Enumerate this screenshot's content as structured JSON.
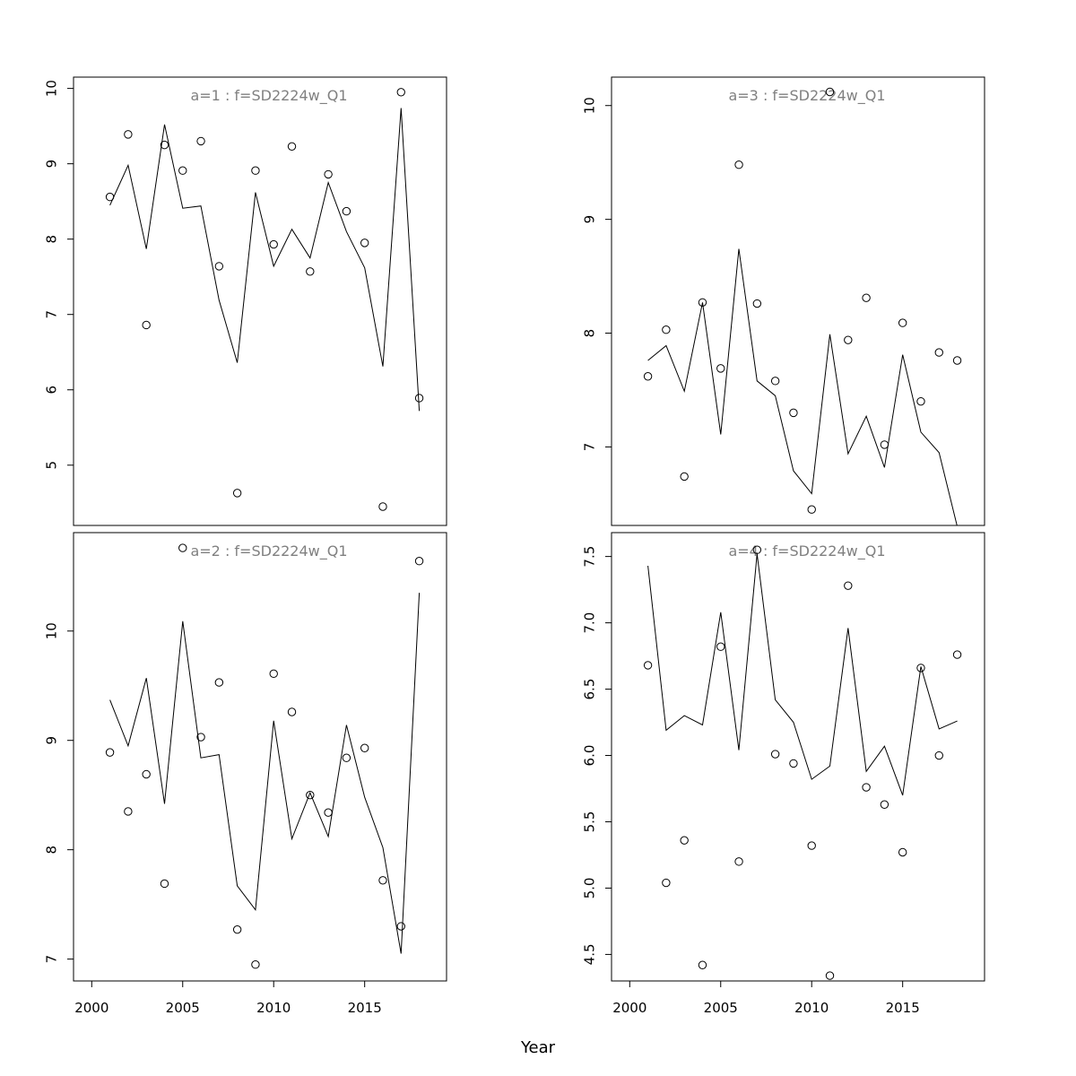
{
  "chart_data": {
    "type": "scatter",
    "xlabel": "Year",
    "series_types": {
      "observed": "points",
      "fitted": "line"
    },
    "panels": [
      {
        "title": "a=1  :  f=SD2224w_Q1",
        "xlim": [
          1999,
          2019.5
        ],
        "ylim": [
          4.2,
          10.15
        ],
        "xticks": [
          2000,
          2005,
          2010,
          2015
        ],
        "yticks": [
          5,
          6,
          7,
          8,
          9,
          10
        ],
        "years": [
          2001,
          2002,
          2003,
          2004,
          2005,
          2006,
          2007,
          2008,
          2009,
          2010,
          2011,
          2012,
          2013,
          2014,
          2015,
          2016,
          2017,
          2018
        ],
        "observed": [
          8.56,
          9.39,
          6.86,
          9.25,
          8.91,
          9.3,
          7.64,
          4.63,
          8.91,
          7.93,
          9.23,
          7.57,
          8.86,
          8.37,
          7.95,
          4.45,
          9.95,
          5.89
        ],
        "fitted": [
          8.45,
          8.98,
          7.87,
          9.52,
          8.41,
          8.44,
          7.19,
          6.36,
          8.62,
          7.64,
          8.13,
          7.75,
          8.75,
          8.1,
          7.62,
          6.31,
          9.74,
          5.72
        ]
      },
      {
        "title": "a=3  :  f=SD2224w_Q1",
        "xlim": [
          1999,
          2019.5
        ],
        "ylim": [
          6.31,
          10.25
        ],
        "xticks": [
          2000,
          2005,
          2010,
          2015
        ],
        "yticks": [
          7,
          8,
          9,
          10
        ],
        "years": [
          2001,
          2002,
          2003,
          2004,
          2005,
          2006,
          2007,
          2008,
          2009,
          2010,
          2011,
          2012,
          2013,
          2014,
          2015,
          2016,
          2017,
          2018
        ],
        "observed": [
          7.62,
          8.03,
          6.74,
          8.27,
          7.69,
          9.48,
          8.26,
          7.58,
          7.3,
          6.45,
          10.12,
          7.94,
          8.31,
          7.02,
          8.09,
          7.4,
          7.83,
          7.76
        ],
        "fitted": [
          7.76,
          7.89,
          7.49,
          8.27,
          7.11,
          8.74,
          7.58,
          7.45,
          6.79,
          6.59,
          7.99,
          6.94,
          7.27,
          6.82,
          7.81,
          7.13,
          6.95,
          6.3
        ]
      },
      {
        "title": "a=2  :  f=SD2224w_Q1",
        "xlim": [
          1999,
          2019.5
        ],
        "ylim": [
          6.8,
          10.9
        ],
        "xticks": [
          2000,
          2005,
          2010,
          2015
        ],
        "yticks": [
          7,
          8,
          9,
          10
        ],
        "years": [
          2001,
          2002,
          2003,
          2004,
          2005,
          2006,
          2007,
          2008,
          2009,
          2010,
          2011,
          2012,
          2013,
          2014,
          2015,
          2016,
          2017,
          2018
        ],
        "observed": [
          8.89,
          8.35,
          8.69,
          7.69,
          10.76,
          9.03,
          9.53,
          7.27,
          6.95,
          9.61,
          9.26,
          8.5,
          8.34,
          8.84,
          8.93,
          7.72,
          7.3,
          10.64
        ],
        "fitted": [
          9.37,
          8.95,
          9.57,
          8.42,
          10.09,
          8.84,
          8.87,
          7.67,
          7.45,
          9.18,
          8.1,
          8.52,
          8.12,
          9.14,
          8.48,
          8.02,
          7.05,
          10.35
        ]
      },
      {
        "title": "a=4  :  f=SD2224w_Q1",
        "xlim": [
          1999,
          2019.5
        ],
        "ylim": [
          4.3,
          7.68
        ],
        "xticks": [
          2000,
          2005,
          2010,
          2015
        ],
        "yticks": [
          4.5,
          5.0,
          5.5,
          6.0,
          6.5,
          7.0,
          7.5
        ],
        "ytick_labels": [
          "4.5",
          "5.0",
          "5.5",
          "6.0",
          "6.5",
          "7.0",
          "7.5"
        ],
        "years": [
          2001,
          2002,
          2003,
          2004,
          2005,
          2006,
          2007,
          2008,
          2009,
          2010,
          2011,
          2012,
          2013,
          2014,
          2015,
          2016,
          2017,
          2018
        ],
        "observed": [
          6.68,
          5.04,
          5.36,
          4.42,
          6.82,
          5.2,
          7.55,
          6.01,
          5.94,
          5.32,
          4.34,
          7.28,
          5.76,
          5.63,
          5.27,
          6.66,
          6.0,
          6.76
        ],
        "fitted": [
          7.43,
          6.19,
          6.3,
          6.23,
          7.08,
          6.04,
          7.52,
          6.42,
          6.25,
          5.82,
          5.92,
          6.96,
          5.88,
          6.07,
          5.7,
          6.67,
          6.2,
          6.26
        ]
      }
    ]
  }
}
